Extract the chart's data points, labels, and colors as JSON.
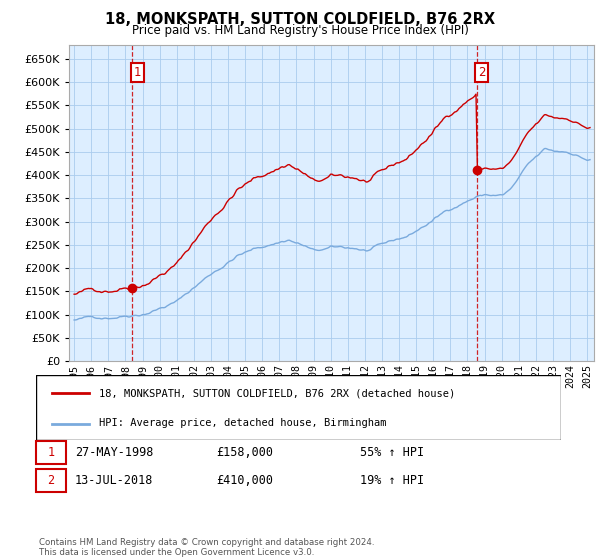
{
  "title": "18, MONKSPATH, SUTTON COLDFIELD, B76 2RX",
  "subtitle": "Price paid vs. HM Land Registry's House Price Index (HPI)",
  "ylim": [
    0,
    680000
  ],
  "yticks": [
    0,
    50000,
    100000,
    150000,
    200000,
    250000,
    300000,
    350000,
    400000,
    450000,
    500000,
    550000,
    600000,
    650000
  ],
  "xlim_start": 1994.7,
  "xlim_end": 2025.4,
  "sale1_x": 1998.4,
  "sale1_y": 158000,
  "sale2_x": 2018.53,
  "sale2_y": 410000,
  "red_color": "#cc0000",
  "blue_color": "#7aaadd",
  "chart_bg": "#ddeeff",
  "annotation_color": "#cc0000",
  "grid_color": "#aaccee",
  "bg_color": "#ffffff",
  "legend_label_red": "18, MONKSPATH, SUTTON COLDFIELD, B76 2RX (detached house)",
  "legend_label_blue": "HPI: Average price, detached house, Birmingham",
  "table_row1": [
    "1",
    "27-MAY-1998",
    "£158,000",
    "55% ↑ HPI"
  ],
  "table_row2": [
    "2",
    "13-JUL-2018",
    "£410,000",
    "19% ↑ HPI"
  ],
  "footer": "Contains HM Land Registry data © Crown copyright and database right 2024.\nThis data is licensed under the Open Government Licence v3.0.",
  "dashed_color": "#cc0000"
}
